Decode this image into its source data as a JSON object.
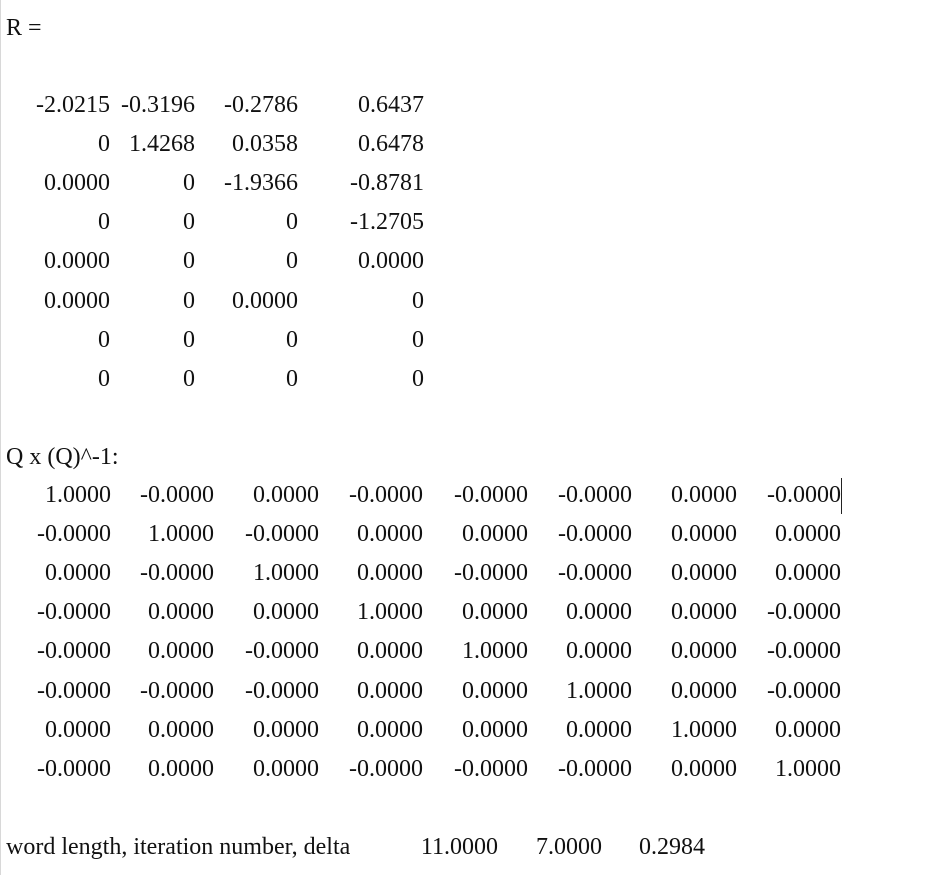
{
  "r_matrix": {
    "label": "R =",
    "rows": [
      [
        "-2.0215",
        "-0.3196",
        "-0.2786",
        "0.6437"
      ],
      [
        "0",
        "1.4268",
        "0.0358",
        "0.6478"
      ],
      [
        "0.0000",
        "0",
        "-1.9366",
        "-0.8781"
      ],
      [
        "0",
        "0",
        "0",
        "-1.2705"
      ],
      [
        "0.0000",
        "0",
        "0",
        "0.0000"
      ],
      [
        "0.0000",
        "0",
        "0.0000",
        "0"
      ],
      [
        "0",
        "0",
        "0",
        "0"
      ],
      [
        "0",
        "0",
        "0",
        "0"
      ]
    ]
  },
  "q_matrix": {
    "label": "Q x (Q)^-1:",
    "rows": [
      [
        "1.0000",
        "-0.0000",
        "0.0000",
        "-0.0000",
        "-0.0000",
        "-0.0000",
        "0.0000",
        "-0.0000"
      ],
      [
        "-0.0000",
        "1.0000",
        "-0.0000",
        "0.0000",
        "0.0000",
        "-0.0000",
        "0.0000",
        "0.0000"
      ],
      [
        "0.0000",
        "-0.0000",
        "1.0000",
        "0.0000",
        "-0.0000",
        "-0.0000",
        "0.0000",
        "0.0000"
      ],
      [
        "-0.0000",
        "0.0000",
        "0.0000",
        "1.0000",
        "0.0000",
        "0.0000",
        "0.0000",
        "-0.0000"
      ],
      [
        "-0.0000",
        "0.0000",
        "-0.0000",
        "0.0000",
        "1.0000",
        "0.0000",
        "0.0000",
        "-0.0000"
      ],
      [
        "-0.0000",
        "-0.0000",
        "-0.0000",
        "0.0000",
        "0.0000",
        "1.0000",
        "0.0000",
        "-0.0000"
      ],
      [
        "0.0000",
        "0.0000",
        "0.0000",
        "0.0000",
        "0.0000",
        "0.0000",
        "1.0000",
        "0.0000"
      ],
      [
        "-0.0000",
        "0.0000",
        "0.0000",
        "-0.0000",
        "-0.0000",
        "-0.0000",
        "0.0000",
        "1.0000"
      ]
    ]
  },
  "summary": {
    "label": "word length, iteration number, delta",
    "values": [
      "11.0000",
      "7.0000",
      "0.2984"
    ]
  }
}
